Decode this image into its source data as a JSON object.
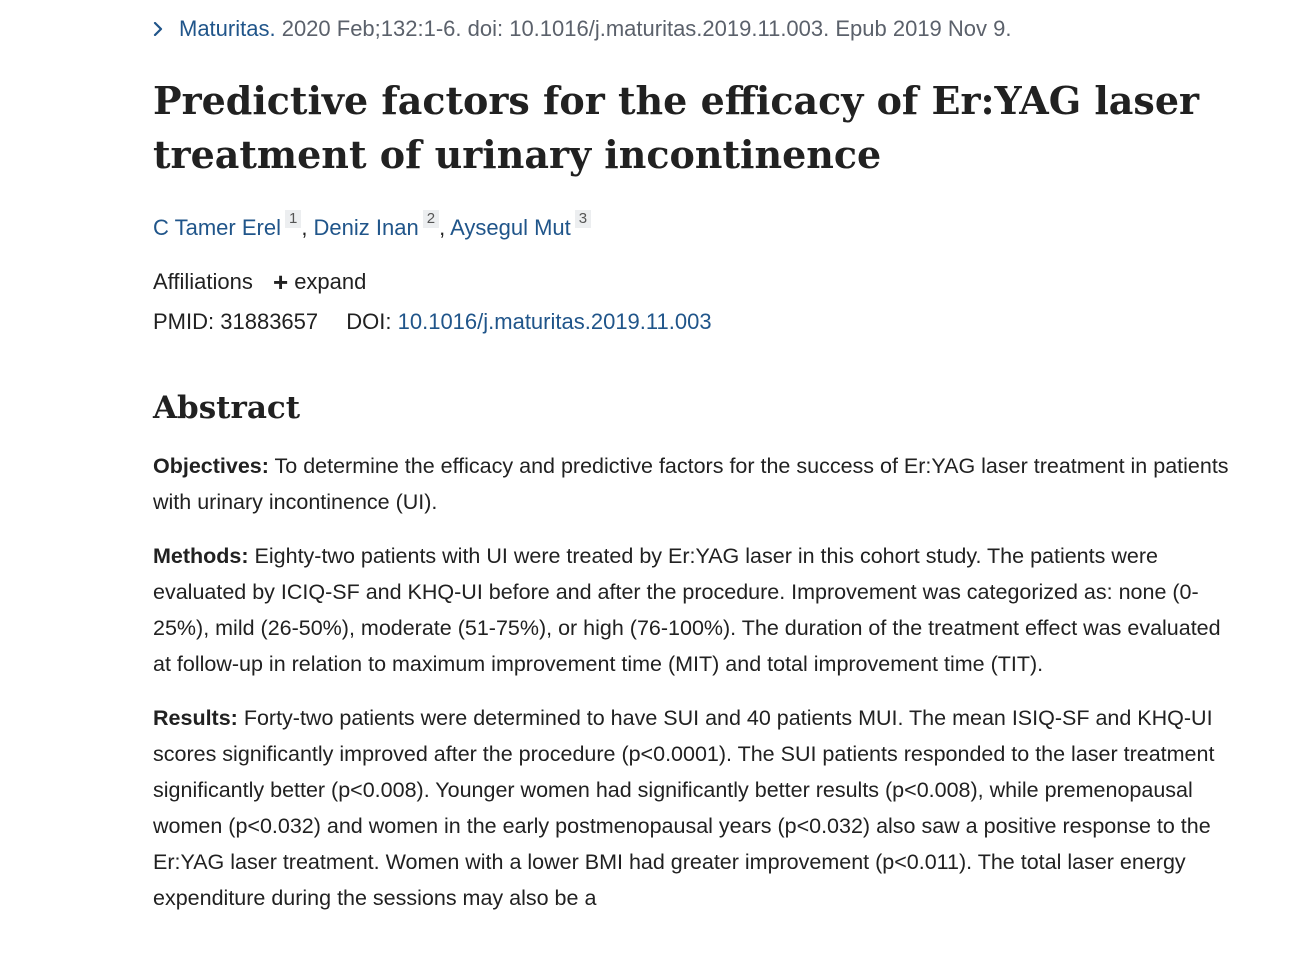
{
  "citation": {
    "journal": "Maturitas.",
    "details": " 2020 Feb;132:1-6. doi: 10.1016/j.maturitas.2019.11.003. Epub 2019 Nov 9."
  },
  "title": "Predictive factors for the efficacy of Er:YAG laser treatment of urinary incontinence",
  "authors": [
    {
      "name": "C Tamer Erel",
      "aff": "1"
    },
    {
      "name": "Deniz Inan",
      "aff": "2"
    },
    {
      "name": "Aysegul Mut",
      "aff": "3"
    }
  ],
  "affiliations": {
    "label": "Affiliations",
    "expand_label": "expand"
  },
  "ids": {
    "pmid_label": "PMID:",
    "pmid": "31883657",
    "doi_label": "DOI:",
    "doi": "10.1016/j.maturitas.2019.11.003"
  },
  "abstract": {
    "heading": "Abstract",
    "sections": [
      {
        "label": "Objectives:",
        "text": "To determine the efficacy and predictive factors for the success of Er:YAG laser treatment in patients with urinary incontinence (UI)."
      },
      {
        "label": "Methods:",
        "text": "Eighty-two patients with UI were treated by Er:YAG laser in this cohort study. The patients were evaluated by ICIQ-SF and KHQ-UI before and after the procedure. Improvement was categorized as: none (0-25%), mild (26-50%), moderate (51-75%), or high (76-100%). The duration of the treatment effect was evaluated at follow-up in relation to maximum improvement time (MIT) and total improvement time (TIT)."
      },
      {
        "label": "Results:",
        "text": "Forty-two patients were determined to have SUI and 40 patients MUI. The mean ISIQ-SF and KHQ-UI scores significantly improved after the procedure (p<0.0001). The SUI patients responded to the laser treatment significantly better (p<0.008). Younger women had significantly better results (p<0.008), while premenopausal women (p<0.032) and women in the early postmenopausal years (p<0.032) also saw a positive response to the Er:YAG laser treatment. Women with a lower BMI had greater improvement (p<0.011). The total laser energy expenditure during the sessions may also be a"
      }
    ]
  },
  "colors": {
    "link": "#20558a",
    "text": "#212121",
    "muted": "#5b616b"
  }
}
